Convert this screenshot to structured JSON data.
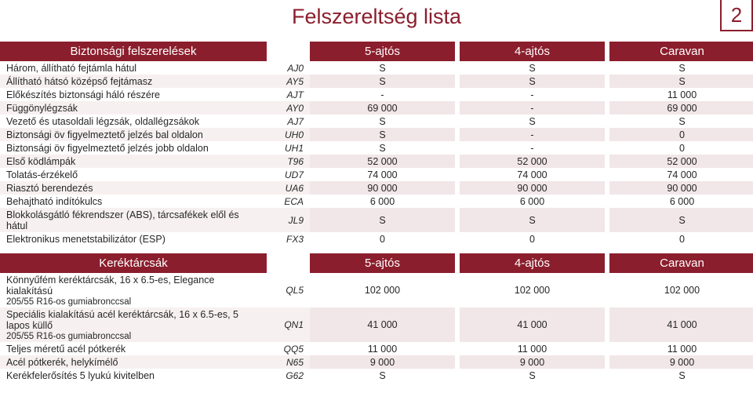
{
  "header": {
    "title": "Felszereltség lista",
    "page_number": "2"
  },
  "colors": {
    "brand": "#8B1E2D",
    "row_alt_val": "#f1e6e8",
    "row_alt_side": "#f7f0f1",
    "text": "#262626"
  },
  "sections": [
    {
      "title": "Biztonsági felszerelések",
      "col_headers": [
        "5-ajtós",
        "4-ajtós",
        "Caravan"
      ],
      "rows": [
        {
          "label": "Három, állítható fejtámla hátul",
          "code": "AJ0",
          "v": [
            "S",
            "S",
            "S"
          ],
          "alt": false
        },
        {
          "label": "Állítható hátsó középső fejtámasz",
          "code": "AY5",
          "v": [
            "S",
            "S",
            "S"
          ],
          "alt": true
        },
        {
          "label": "Előkészítés biztonsági háló részére",
          "code": "AJT",
          "v": [
            "-",
            "-",
            "11 000"
          ],
          "alt": false
        },
        {
          "label": "Függönylégzsák",
          "code": "AY0",
          "v": [
            "69 000",
            "-",
            "69 000"
          ],
          "alt": true
        },
        {
          "label": "Vezető és utasoldali légzsák, oldallégzsákok",
          "code": "AJ7",
          "v": [
            "S",
            "S",
            "S"
          ],
          "alt": false
        },
        {
          "label": "Biztonsági öv figyelmeztető jelzés bal oldalon",
          "code": "UH0",
          "v": [
            "S",
            "-",
            "0"
          ],
          "alt": true
        },
        {
          "label": "Biztonsági öv figyelmeztető jelzés jobb oldalon",
          "code": "UH1",
          "v": [
            "S",
            "-",
            "0"
          ],
          "alt": false
        },
        {
          "label": "Első ködlámpák",
          "code": "T96",
          "v": [
            "52 000",
            "52 000",
            "52 000"
          ],
          "alt": true
        },
        {
          "label": "Tolatás-érzékelő",
          "code": "UD7",
          "v": [
            "74 000",
            "74 000",
            "74 000"
          ],
          "alt": false
        },
        {
          "label": "Riasztó berendezés",
          "code": "UA6",
          "v": [
            "90 000",
            "90 000",
            "90 000"
          ],
          "alt": true
        },
        {
          "label": "Behajtható indítókulcs",
          "code": "ECA",
          "v": [
            "6 000",
            "6 000",
            "6 000"
          ],
          "alt": false
        },
        {
          "label": "Blokkolásgátló fékrendszer (ABS), tárcsafékek elől és hátul",
          "code": "JL9",
          "v": [
            "S",
            "S",
            "S"
          ],
          "alt": true
        },
        {
          "label": "Elektronikus menetstabilizátor (ESP)",
          "code": "FX3",
          "v": [
            "0",
            "0",
            "0"
          ],
          "alt": false
        }
      ]
    },
    {
      "title": "Keréktárcsák",
      "col_headers": [
        "5-ajtós",
        "4-ajtós",
        "Caravan"
      ],
      "rows": [
        {
          "label": "Könnyűfém keréktárcsák, 16 x 6.5-es, Elegance kialakítású",
          "sublabel": "205/55 R16-os gumiabronccsal",
          "code": "QL5",
          "v": [
            "102 000",
            "102 000",
            "102 000"
          ],
          "alt": false
        },
        {
          "label": "Speciális kialakítású acél keréktárcsák, 16 x 6.5-es, 5 lapos küllő",
          "sublabel": "205/55 R16-os gumiabronccsal",
          "code": "QN1",
          "v": [
            "41 000",
            "41 000",
            "41 000"
          ],
          "alt": true
        },
        {
          "label": "Teljes méretű acél pótkerék",
          "code": "QQ5",
          "v": [
            "11 000",
            "11 000",
            "11 000"
          ],
          "alt": false
        },
        {
          "label": "Acél pótkerék, helykímélő",
          "code": "N65",
          "v": [
            "9 000",
            "9 000",
            "9 000"
          ],
          "alt": true
        },
        {
          "label": "Kerékfelerősítés 5 lyukú kivitelben",
          "code": "G62",
          "v": [
            "S",
            "S",
            "S"
          ],
          "alt": false
        }
      ]
    }
  ]
}
